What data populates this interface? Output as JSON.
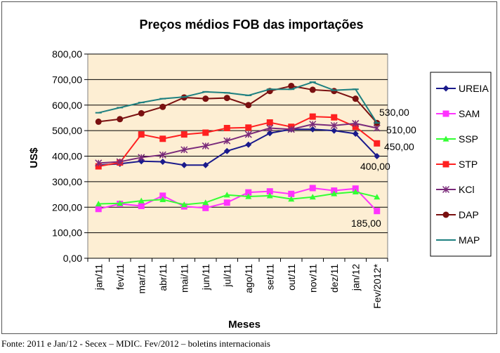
{
  "chart_data": {
    "type": "line",
    "title": "Preços médios FOB das importações",
    "xlabel": "Meses",
    "ylabel": "US$",
    "ylim": [
      0,
      800
    ],
    "yticks": [
      "0,00",
      "100,00",
      "200,00",
      "300,00",
      "400,00",
      "500,00",
      "600,00",
      "700,00",
      "800,00"
    ],
    "categories": [
      "jan/11",
      "fev/11",
      "mar/11",
      "abr/11",
      "mai/11",
      "jun/11",
      "jul/11",
      "ago/11",
      "set/11",
      "out/11",
      "nov/11",
      "dez/11",
      "jan/12",
      "Fev/2012*"
    ],
    "grid": true,
    "legend": "right",
    "series": [
      {
        "name": "UREIA",
        "color": "#1a1a8c",
        "marker": "diamond",
        "values": [
          365,
          370,
          380,
          378,
          365,
          365,
          420,
          445,
          490,
          505,
          505,
          500,
          488,
          400
        ]
      },
      {
        "name": "SAM",
        "color": "#ff33ff",
        "marker": "square",
        "values": [
          193,
          213,
          205,
          245,
          203,
          197,
          218,
          258,
          262,
          252,
          275,
          265,
          273,
          185
        ]
      },
      {
        "name": "SSP",
        "color": "#33ff33",
        "marker": "triangle",
        "values": [
          213,
          215,
          225,
          230,
          210,
          218,
          248,
          242,
          245,
          232,
          240,
          253,
          260,
          240
        ]
      },
      {
        "name": "STP",
        "color": "#ff2020",
        "marker": "square",
        "values": [
          360,
          375,
          485,
          468,
          485,
          492,
          510,
          512,
          532,
          515,
          555,
          552,
          515,
          450
        ]
      },
      {
        "name": "KCl",
        "color": "#7a2a7a",
        "marker": "star",
        "values": [
          373,
          378,
          395,
          405,
          425,
          440,
          460,
          485,
          510,
          505,
          525,
          520,
          528,
          510
        ]
      },
      {
        "name": "DAP",
        "color": "#7a1010",
        "marker": "circle",
        "values": [
          535,
          545,
          568,
          593,
          630,
          625,
          628,
          600,
          655,
          675,
          660,
          655,
          625,
          530
        ]
      },
      {
        "name": "MAP",
        "color": "#1e8080",
        "marker": "dash",
        "values": [
          570,
          590,
          610,
          625,
          632,
          652,
          648,
          638,
          662,
          662,
          690,
          658,
          662,
          530
        ]
      }
    ],
    "annotations": [
      {
        "text": "530,00",
        "value": 530
      },
      {
        "text": "510,00",
        "value": 510
      },
      {
        "text": "450,00",
        "value": 450
      },
      {
        "text": "400,00",
        "value": 400
      },
      {
        "text": "185,00",
        "value": 185
      }
    ]
  },
  "source_note": "Fonte: 2011 e Jan/12 - Secex – MDIC. Fev/2012 – boletins internacionais"
}
